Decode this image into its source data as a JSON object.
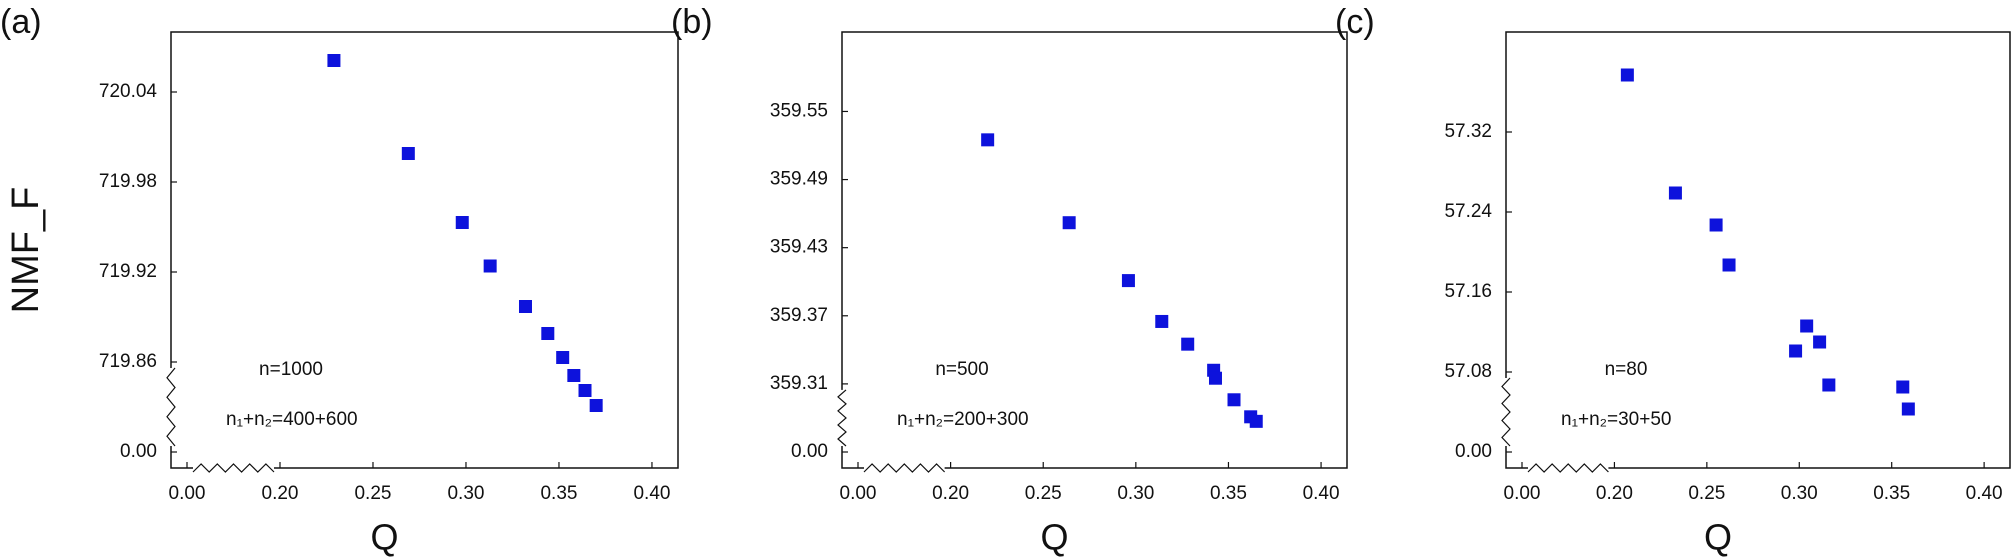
{
  "chart_data": [
    {
      "type": "scatter",
      "panel_label": "(a)",
      "ylabel": "NMF_F",
      "xlabel": "Q",
      "color": "#0d12dc",
      "annotations": [
        "n=1000",
        "n₁+n₂=400+600"
      ],
      "axis_break": true,
      "x": [
        0.229,
        0.269,
        0.298,
        0.313,
        0.332,
        0.344,
        0.352,
        0.358,
        0.364,
        0.37
      ],
      "y": [
        720.061,
        719.999,
        719.953,
        719.924,
        719.897,
        719.879,
        719.863,
        719.851,
        719.841,
        719.831
      ],
      "xlim": [
        0,
        0.414
      ],
      "xticks": [
        {
          "value": 0,
          "label": "0.00"
        },
        {
          "value": 0.2,
          "label": "0.20"
        },
        0.25,
        {
          "value": 0.3,
          "label": "0.30"
        },
        0.35,
        {
          "value": 0.4,
          "label": "0.40"
        }
      ],
      "ylim": [
        0,
        720.08
      ],
      "yticks": [
        {
          "value": 0,
          "label": "0.00"
        },
        719.86,
        719.92,
        719.98,
        720.04
      ]
    },
    {
      "type": "scatter",
      "panel_label": "(b)",
      "xlabel": "Q",
      "color": "#0d12dc",
      "annotations": [
        "n=500",
        "n₁+n₂=200+300"
      ],
      "axis_break": true,
      "x": [
        0.22,
        0.264,
        0.296,
        0.314,
        0.328,
        0.342,
        0.343,
        0.353,
        0.362,
        0.365
      ],
      "y": [
        359.525,
        359.452,
        359.401,
        359.365,
        359.345,
        359.322,
        359.315,
        359.296,
        359.281,
        359.277
      ],
      "xlim": [
        0,
        0.414
      ],
      "xticks": [
        {
          "value": 0,
          "label": "0.00"
        },
        {
          "value": 0.2,
          "label": "0.20"
        },
        0.25,
        {
          "value": 0.3,
          "label": "0.30"
        },
        0.35,
        {
          "value": 0.4,
          "label": "0.40"
        }
      ],
      "ylim": [
        0,
        359.62
      ],
      "yticks": [
        {
          "value": 0,
          "label": "0.00"
        },
        359.31,
        359.37,
        359.43,
        359.49,
        359.55
      ]
    },
    {
      "type": "scatter",
      "panel_label": "(c)",
      "xlabel": "Q",
      "color": "#0d12dc",
      "annotations": [
        "n=80",
        "n₁+n₂=30+50"
      ],
      "axis_break": true,
      "x": [
        0.207,
        0.233,
        0.255,
        0.262,
        0.298,
        0.304,
        0.311,
        0.316,
        0.356,
        0.359
      ],
      "y": [
        57.377,
        57.259,
        57.227,
        57.187,
        57.101,
        57.126,
        57.11,
        57.067,
        57.065,
        57.043
      ],
      "xlim": [
        0,
        0.414
      ],
      "xticks": [
        {
          "value": 0,
          "label": "0.00"
        },
        {
          "value": 0.2,
          "label": "0.20"
        },
        0.25,
        {
          "value": 0.3,
          "label": "0.30"
        },
        0.35,
        {
          "value": 0.4,
          "label": "0.40"
        }
      ],
      "ylim": [
        0,
        57.42
      ],
      "yticks": [
        {
          "value": 0,
          "label": "0.00"
        },
        57.08,
        57.16,
        57.24,
        57.32
      ]
    }
  ]
}
